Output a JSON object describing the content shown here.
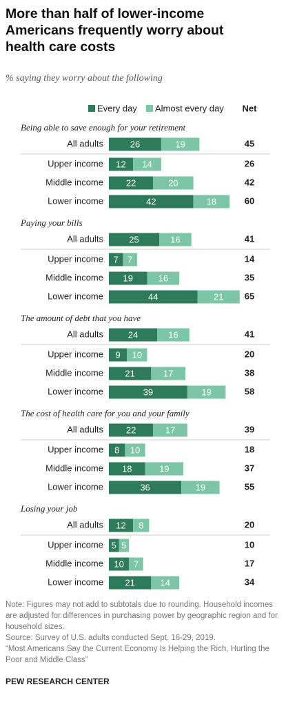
{
  "chart_data": {
    "type": "stacked-bar",
    "title": "More than half of lower-income Americans frequently worry about health care costs",
    "subtitle": "% saying they worry about the following",
    "series": [
      {
        "name": "Every day",
        "color": "#2e7b5b"
      },
      {
        "name": "Almost every day",
        "color": "#7cc6a7"
      }
    ],
    "net_label": "Net",
    "groups": [
      {
        "title": "Being able to save enough for your retirement",
        "categories": [
          "All adults",
          "Upper income",
          "Middle income",
          "Lower income"
        ],
        "values": [
          [
            26,
            12,
            22,
            42
          ],
          [
            19,
            14,
            20,
            18
          ]
        ],
        "net": [
          45,
          26,
          42,
          60
        ]
      },
      {
        "title": "Paying your bills",
        "categories": [
          "All adults",
          "Upper income",
          "Middle income",
          "Lower income"
        ],
        "values": [
          [
            25,
            7,
            19,
            44
          ],
          [
            16,
            7,
            16,
            21
          ]
        ],
        "net": [
          41,
          14,
          35,
          65
        ]
      },
      {
        "title": "The amount of debt that you have",
        "categories": [
          "All adults",
          "Upper income",
          "Middle income",
          "Lower income"
        ],
        "values": [
          [
            24,
            9,
            21,
            39
          ],
          [
            16,
            10,
            17,
            19
          ]
        ],
        "net": [
          41,
          20,
          38,
          58
        ]
      },
      {
        "title": "The cost of health care for you and your family",
        "categories": [
          "All adults",
          "Upper income",
          "Middle income",
          "Lower income"
        ],
        "values": [
          [
            22,
            8,
            18,
            36
          ],
          [
            17,
            10,
            19,
            19
          ]
        ],
        "net": [
          39,
          18,
          37,
          55
        ]
      },
      {
        "title": "Losing your job",
        "categories": [
          "All adults",
          "Upper income",
          "Middle income",
          "Lower income"
        ],
        "values": [
          [
            12,
            5,
            10,
            21
          ],
          [
            8,
            5,
            7,
            14
          ]
        ],
        "net": [
          20,
          10,
          17,
          34
        ]
      }
    ],
    "note": "Note: Figures may not add to subtotals due to rounding. Household incomes are adjusted for differences in purchasing power by geographic region and for household sizes.",
    "source": "Source: Survey of U.S. adults conducted Sept. 16-29, 2019.",
    "report": "“Most Americans Say the Current Economy Is Helping the Rich, Hurting the Poor and Middle Class”",
    "credit": "PEW RESEARCH CENTER"
  }
}
